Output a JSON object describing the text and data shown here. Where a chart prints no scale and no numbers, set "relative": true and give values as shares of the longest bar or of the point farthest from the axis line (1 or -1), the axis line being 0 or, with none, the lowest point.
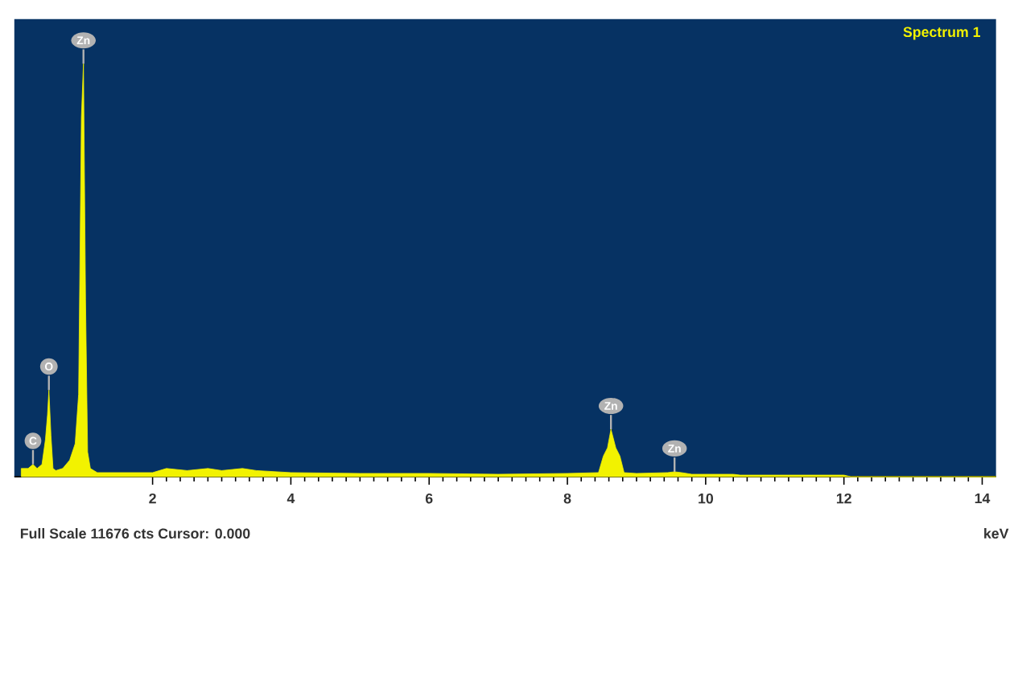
{
  "chart_data": {
    "type": "area",
    "title": "Spectrum 1",
    "xlabel": "keV",
    "relative": true,
    "color": "#f2f200",
    "x": [
      0.1,
      0.2,
      0.27,
      0.33,
      0.4,
      0.45,
      0.48,
      0.5,
      0.53,
      0.56,
      0.6,
      0.7,
      0.8,
      0.88,
      0.93,
      0.97,
      1.0,
      1.03,
      1.06,
      1.1,
      1.2,
      1.5,
      2.0,
      2.2,
      2.5,
      2.8,
      3.0,
      3.3,
      3.5,
      4.0,
      5.0,
      6.0,
      7.0,
      8.0,
      8.45,
      8.52,
      8.58,
      8.63,
      8.7,
      8.76,
      8.82,
      9.0,
      9.45,
      9.55,
      9.65,
      9.8,
      10.4,
      10.5,
      11.0,
      12.0,
      12.1,
      14.2
    ],
    "values": [
      0.02,
      0.02,
      0.03,
      0.02,
      0.03,
      0.09,
      0.15,
      0.21,
      0.1,
      0.02,
      0.015,
      0.02,
      0.04,
      0.08,
      0.2,
      0.87,
      1.0,
      0.43,
      0.06,
      0.02,
      0.01,
      0.01,
      0.01,
      0.02,
      0.015,
      0.02,
      0.015,
      0.02,
      0.015,
      0.01,
      0.008,
      0.008,
      0.006,
      0.008,
      0.01,
      0.05,
      0.07,
      0.115,
      0.07,
      0.05,
      0.01,
      0.008,
      0.01,
      0.012,
      0.01,
      0.006,
      0.006,
      0.004,
      0.004,
      0.004,
      0,
      0
    ],
    "xlim": [
      0,
      14.2
    ],
    "xticks": [
      2,
      4,
      6,
      8,
      10,
      12,
      14
    ],
    "annotations": [
      {
        "text": "C",
        "x": 0.27,
        "y": 0.03
      },
      {
        "text": "O",
        "x": 0.5,
        "y": 0.21
      },
      {
        "text": "Zn",
        "x": 1.0,
        "y": 1.0
      },
      {
        "text": "Zn",
        "x": 8.63,
        "y": 0.115
      },
      {
        "text": "Zn",
        "x": 9.55,
        "y": 0.012
      },
      "Full Scale 11676 cts Cursor: 0.000"
    ]
  }
}
